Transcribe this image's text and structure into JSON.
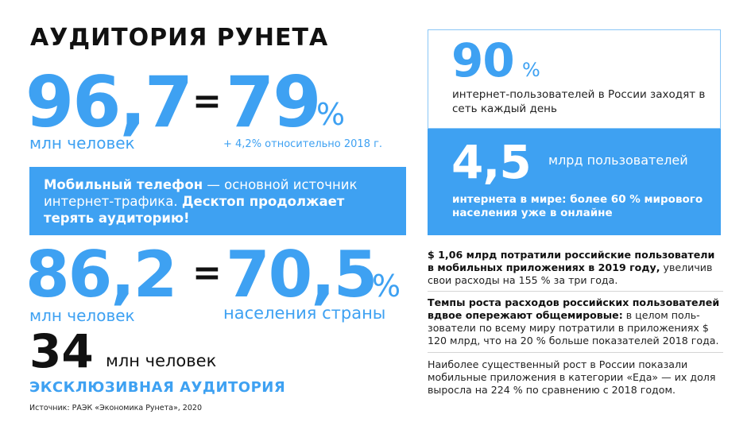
{
  "title": "АУДИТОРИЯ РУНЕТА",
  "stat1": {
    "value": "96,7",
    "unit": "млн человек",
    "equals": "=",
    "share": "79",
    "pct": "%",
    "note": "+ 4,2% относительно 2018 г."
  },
  "mobile_box": {
    "bold1": "Мобильный телефон",
    "text1": " — основной источник интернет-трафика. ",
    "bold2": "Десктоп продолжает терять аудиторию!"
  },
  "stat2": {
    "value": "86,2",
    "unit": "млн человек",
    "equals": "=",
    "share": "70,5",
    "pct": "%",
    "note": "населения страны"
  },
  "stat3": {
    "value": "34",
    "unit": "млн человек",
    "label": "ЭКСКЛЮЗИВНАЯ АУДИТОРИЯ"
  },
  "source": "Источник: РАЭК «Экономика Рунета», 2020",
  "daily": {
    "value": "90",
    "pct": "%",
    "text": "интернет-пользователей в России заходят в сеть каждый день"
  },
  "world": {
    "value": "4,5",
    "unit": "млрд пользователей",
    "text": "интернета в мире: более 60 % мирового населения уже в онлайне"
  },
  "paragraphs": [
    {
      "bold": "$ 1,06 млрд потратили российские пользователи в мобильных приложениях в 2019 году,",
      "text": " увеличив свои расходы на 155 % за три года."
    },
    {
      "bold": "Темпы роста расходов российских пользователей вдвое опережают общемировые:",
      "text": " в целом поль-зователи по всему миру потратили в приложениях $ 120 млрд, что на 20 % больше показателей 2018 года."
    },
    {
      "bold": "",
      "text": "Наиболее существенный рост в России показали мобильные приложения в категории «Еда» — их доля выросла на 224 % по сравнению с 2018 годом."
    }
  ],
  "colors": {
    "accent": "#3ea1f2",
    "text": "#111111"
  }
}
